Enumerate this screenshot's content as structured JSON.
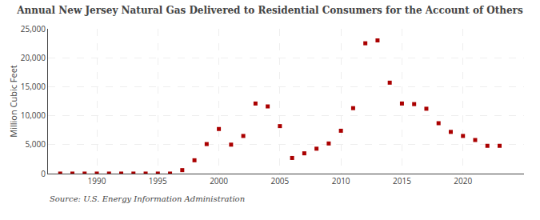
{
  "chart_data": {
    "type": "scatter",
    "title": "Annual New Jersey Natural Gas Delivered to Residential Consumers for the Account of Others",
    "ylabel": "Million Cubic Feet",
    "annotations": [
      "Source: U.S. Energy Information Administration"
    ],
    "x": [
      1987,
      1988,
      1989,
      1990,
      1991,
      1992,
      1993,
      1994,
      1995,
      1996,
      1997,
      1998,
      1999,
      2000,
      2001,
      2002,
      2003,
      2004,
      2005,
      2006,
      2007,
      2008,
      2009,
      2010,
      2011,
      2012,
      2013,
      2014,
      2015,
      2016,
      2017,
      2018,
      2019,
      2020,
      2021,
      2022,
      2023
    ],
    "values": [
      5,
      5,
      5,
      5,
      5,
      5,
      5,
      5,
      5,
      5,
      600,
      2300,
      5100,
      7700,
      5000,
      6500,
      12100,
      11600,
      8200,
      2700,
      3500,
      4300,
      5200,
      7400,
      11300,
      22500,
      23000,
      15700,
      12100,
      12000,
      11200,
      8700,
      7200,
      6500,
      5800,
      4800,
      4800
    ],
    "color": "#aa0000",
    "marker": "square",
    "xlim": [
      1986,
      2025
    ],
    "xticks": [
      1990,
      1995,
      2000,
      2005,
      2010,
      2015,
      2020
    ],
    "ylim": [
      0,
      25000
    ],
    "yticks": [
      0,
      {
        "value": 5000,
        "label": "5,000"
      },
      {
        "value": 10000,
        "label": "10,000"
      },
      {
        "value": 15000,
        "label": "15,000"
      },
      {
        "value": 20000,
        "label": "20,000"
      },
      {
        "value": 25000,
        "label": "25,000"
      }
    ],
    "grid": true
  }
}
